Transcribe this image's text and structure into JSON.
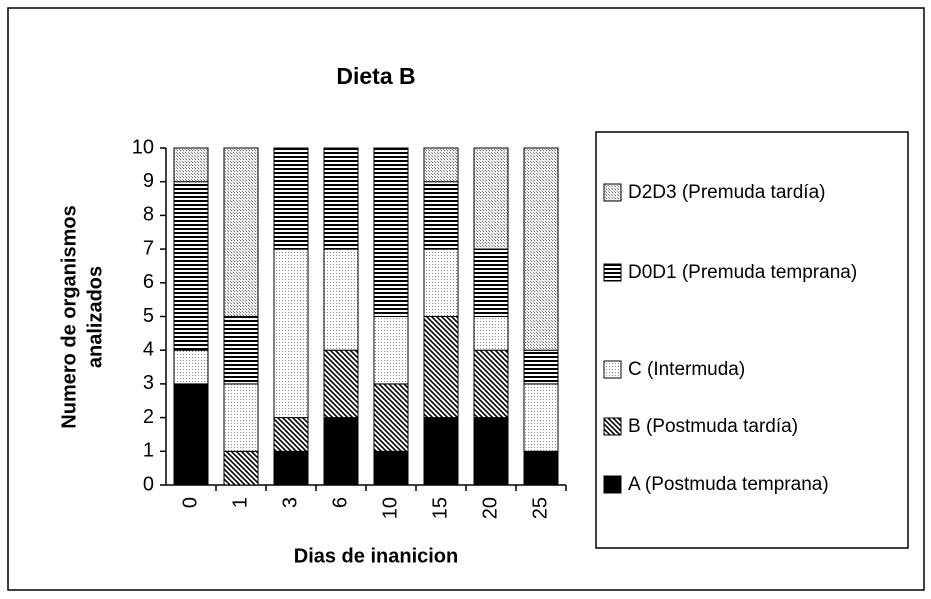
{
  "chart_data": {
    "type": "stacked_bar",
    "title": "Dieta B",
    "xlabel": "Dias de inanicion",
    "ylabel": [
      "Numero de organismos",
      "analizados"
    ],
    "categories": [
      "0",
      "1",
      "3",
      "6",
      "10",
      "15",
      "20",
      "25"
    ],
    "series": [
      {
        "name": "A  (Postmuda temprana)",
        "values": [
          3,
          0,
          1,
          2,
          1,
          2,
          2,
          1
        ]
      },
      {
        "name": "B (Postmuda tardía)",
        "values": [
          0,
          1,
          1,
          2,
          2,
          3,
          2,
          0
        ]
      },
      {
        "name": "C  (Intermuda)",
        "values": [
          1,
          2,
          5,
          3,
          2,
          2,
          1,
          2
        ]
      },
      {
        "name": "D0D1  (Premuda temprana)",
        "values": [
          5,
          2,
          3,
          3,
          5,
          2,
          2,
          1
        ]
      },
      {
        "name": "D2D3  (Premuda tardía)",
        "values": [
          1,
          5,
          0,
          0,
          0,
          1,
          3,
          6
        ]
      }
    ],
    "ylim": [
      0,
      10
    ],
    "yticks": [
      0,
      1,
      2,
      3,
      4,
      5,
      6,
      7,
      8,
      9,
      10
    ]
  }
}
